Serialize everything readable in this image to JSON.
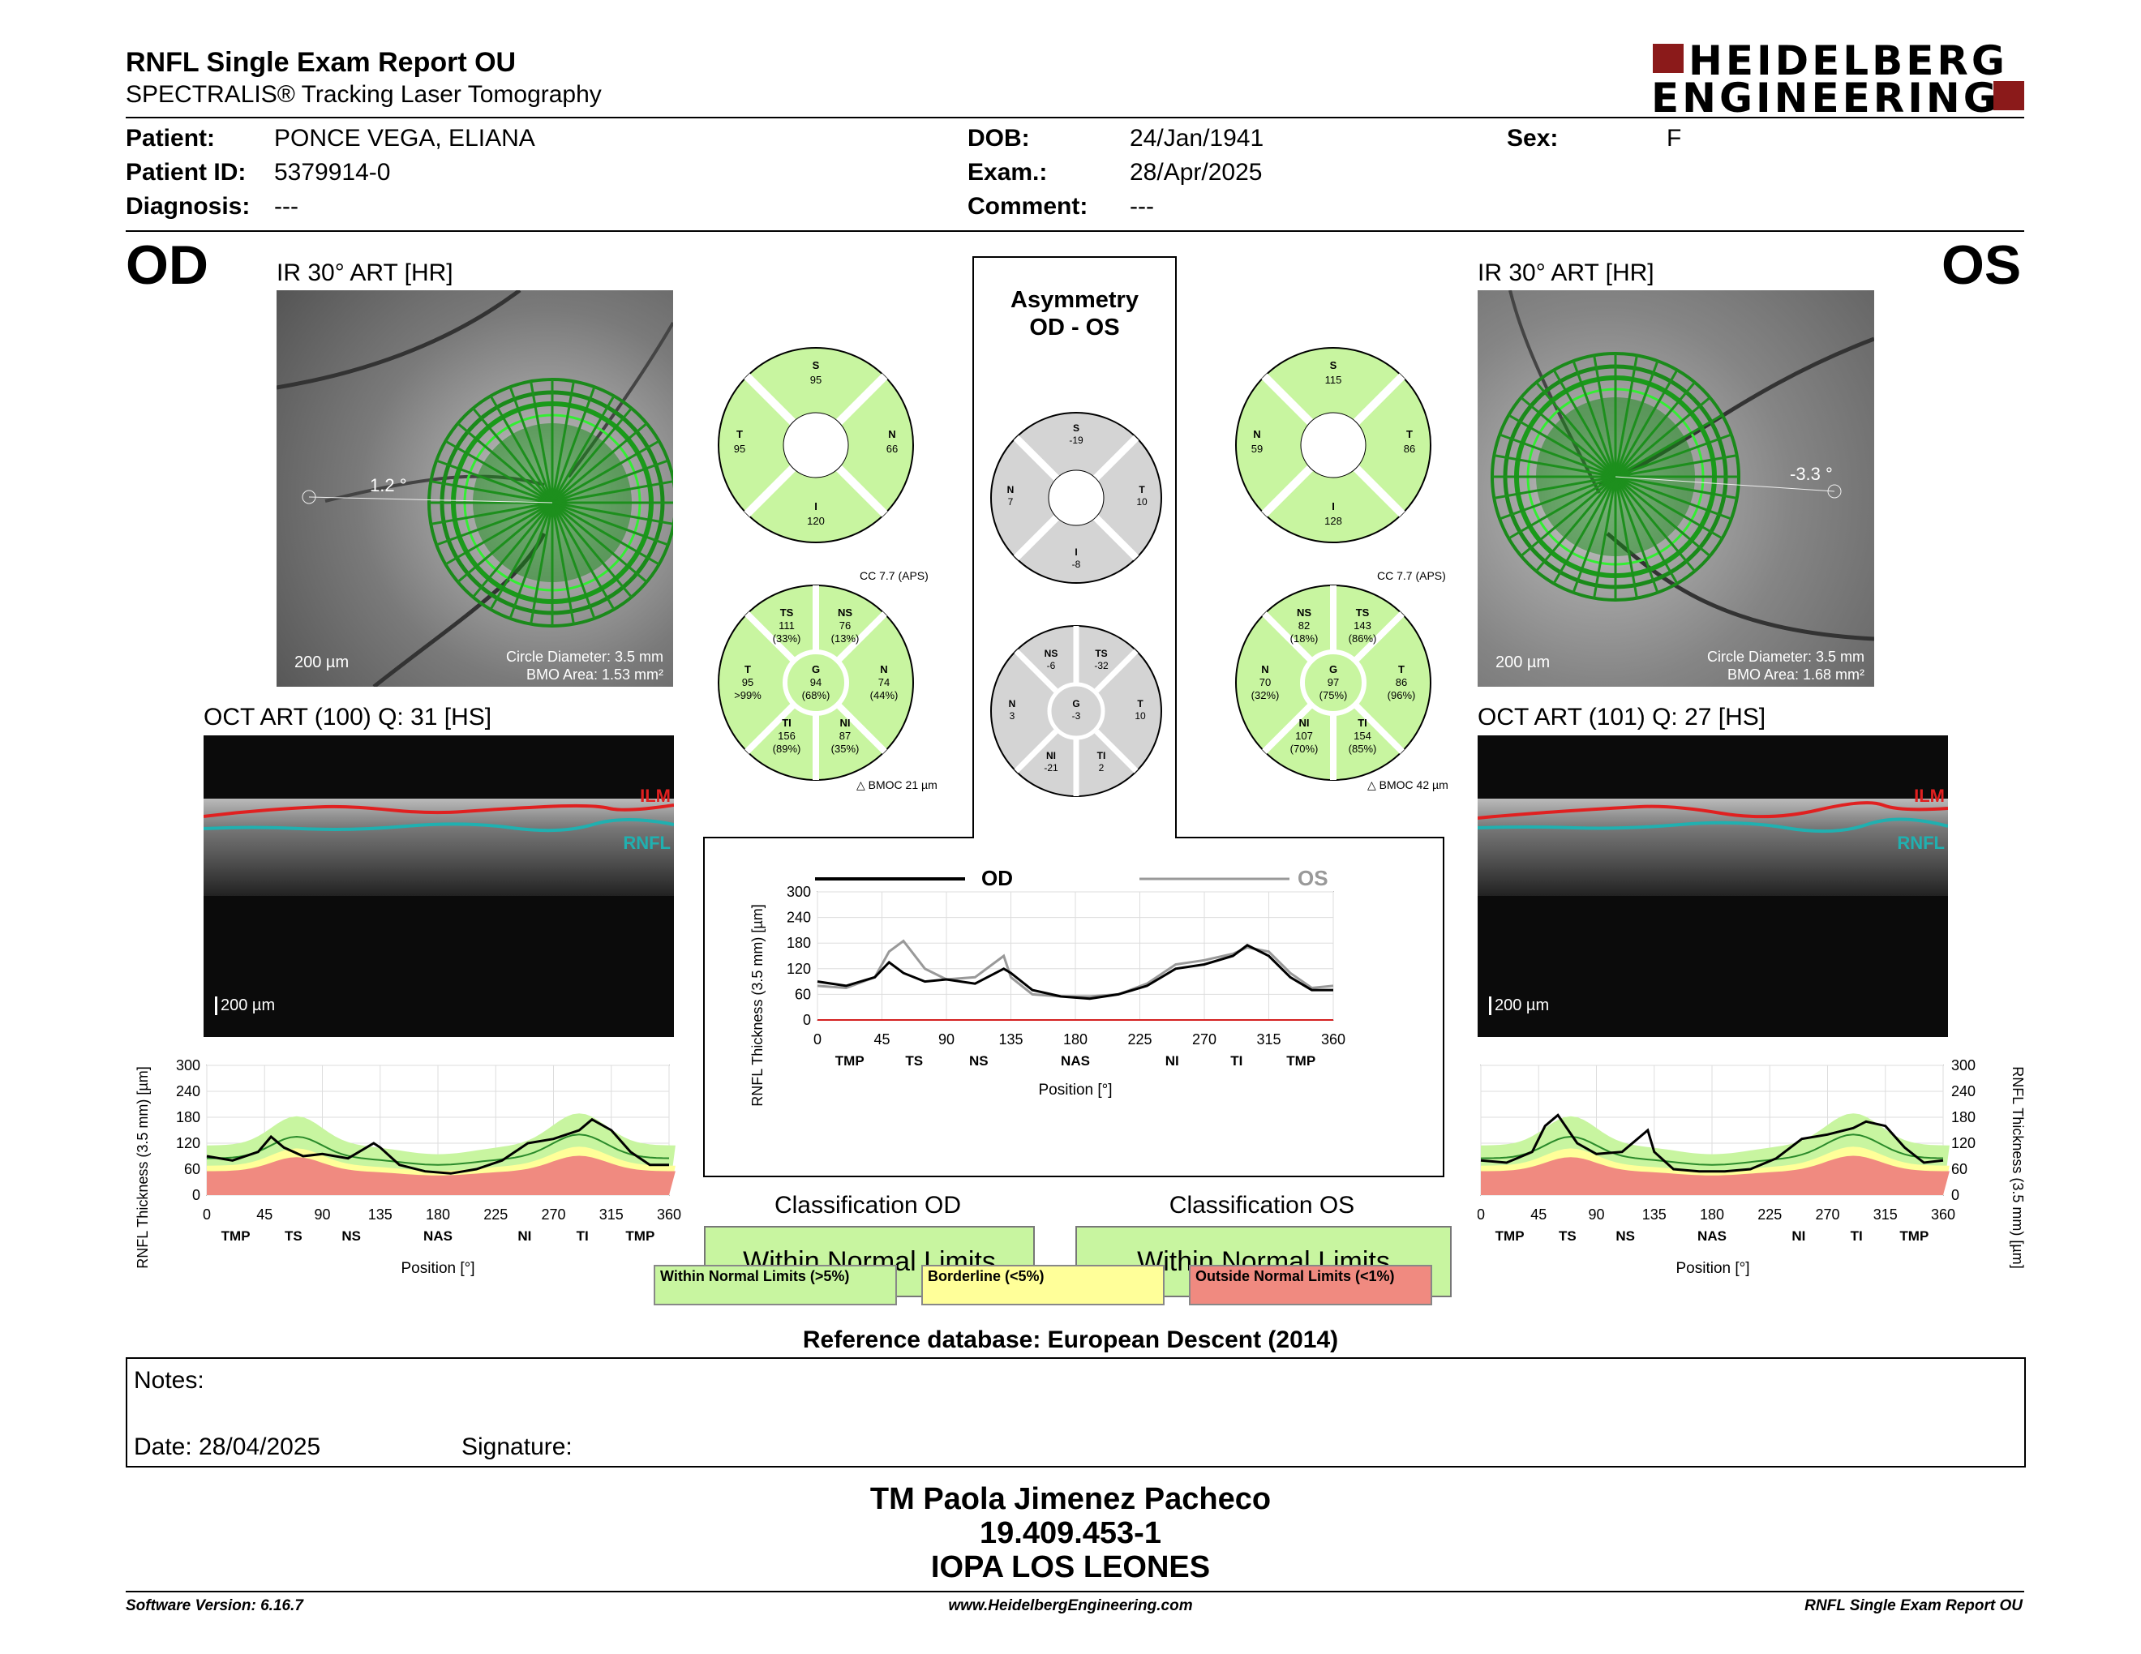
{
  "header": {
    "title": "RNFL Single Exam Report OU",
    "subtitle": "SPECTRALIS® Tracking Laser Tomography",
    "logo_line1": "HEIDELBERG",
    "logo_line2": "ENGINEERING"
  },
  "patient": {
    "patient_label": "Patient:",
    "patient_value": "PONCE VEGA, ELIANA",
    "id_label": "Patient ID:",
    "id_value": "5379914-0",
    "diagnosis_label": "Diagnosis:",
    "diagnosis_value": "---",
    "dob_label": "DOB:",
    "dob_value": "24/Jan/1941",
    "exam_label": "Exam.:",
    "exam_value": "28/Apr/2025",
    "comment_label": "Comment:",
    "comment_value": "---",
    "sex_label": "Sex:",
    "sex_value": "F"
  },
  "od": {
    "eye": "OD",
    "ir_title": "IR 30° ART [HR]",
    "angle": "1.2 °",
    "scale": "200 µm",
    "circle_diameter": "Circle Diameter: 3.5 mm",
    "bmo_area": "BMO Area: 1.53 mm²",
    "oct_title": "OCT ART (100) Q: 31 [HS]",
    "ilm": "ILM",
    "rnfl": "RNFL",
    "oct_scale": "200 µm",
    "sectors4": {
      "S": "95",
      "T": "95",
      "N": "66",
      "I": "120"
    },
    "cc": "CC 7.7 (APS)",
    "bmoc": "BMOC 21 µm",
    "sectors6": {
      "TS": [
        "111",
        "(33%)"
      ],
      "NS": [
        "76",
        "(13%)"
      ],
      "T": [
        "95",
        ">99%"
      ],
      "G": [
        "94",
        "(68%)"
      ],
      "N": [
        "74",
        "(44%)"
      ],
      "TI": [
        "156",
        "(89%)"
      ],
      "NI": [
        "87",
        "(35%)"
      ]
    },
    "classification_label": "Classification OD",
    "classification_value": "Within Normal Limits"
  },
  "os": {
    "eye": "OS",
    "ir_title": "IR 30° ART [HR]",
    "angle": "-3.3 °",
    "scale": "200 µm",
    "circle_diameter": "Circle Diameter: 3.5 mm",
    "bmo_area": "BMO Area: 1.68 mm²",
    "oct_title": "OCT ART (101) Q: 27 [HS]",
    "ilm": "ILM",
    "rnfl": "RNFL",
    "oct_scale": "200 µm",
    "sectors4": {
      "S": "115",
      "N": "59",
      "T": "86",
      "I": "128"
    },
    "cc": "CC 7.7 (APS)",
    "bmoc": "BMOC 42 µm",
    "sectors6": {
      "NS": [
        "82",
        "(18%)"
      ],
      "TS": [
        "143",
        "(86%)"
      ],
      "N": [
        "70",
        "(32%)"
      ],
      "G": [
        "97",
        "(75%)"
      ],
      "T": [
        "86",
        "(96%)"
      ],
      "NI": [
        "107",
        "(70%)"
      ],
      "TI": [
        "154",
        "(85%)"
      ]
    },
    "classification_label": "Classification OS",
    "classification_value": "Within Normal Limits"
  },
  "asymmetry": {
    "title1": "Asymmetry",
    "title2": "OD - OS",
    "sectors4": {
      "S": "-19",
      "N": "7",
      "T": "10",
      "I": "-8"
    },
    "sectors6": {
      "NS": "-6",
      "TS": "-32",
      "N": "3",
      "G": "-3",
      "T": "10",
      "NI": "-21",
      "TI": "2"
    }
  },
  "charts": {
    "ylabel": "RNFL Thickness (3.5 mm) [µm]",
    "xlabel": "Position [°]",
    "od_legend": "OD",
    "os_legend": "OS",
    "yticks": [
      "0",
      "60",
      "120",
      "180",
      "240",
      "300"
    ],
    "xticks": [
      "0",
      "45",
      "90",
      "135",
      "180",
      "225",
      "270",
      "315",
      "360"
    ],
    "sectors": [
      "TMP",
      "TS",
      "NS",
      "NAS",
      "NI",
      "TI",
      "TMP"
    ]
  },
  "chart_data": [
    {
      "type": "line",
      "title": "",
      "xlabel": "Position [°]",
      "ylabel": "RNFL Thickness (3.5 mm) [µm]",
      "xlim": [
        0,
        360
      ],
      "ylim": [
        0,
        300
      ],
      "x": [
        0,
        20,
        40,
        50,
        60,
        75,
        90,
        110,
        130,
        135,
        150,
        170,
        190,
        210,
        230,
        250,
        270,
        290,
        300,
        315,
        330,
        345,
        360
      ],
      "series": [
        {
          "name": "OD",
          "values": [
            90,
            80,
            100,
            135,
            110,
            90,
            95,
            85,
            120,
            110,
            70,
            55,
            50,
            60,
            80,
            120,
            130,
            150,
            175,
            150,
            100,
            70,
            70
          ]
        }
      ]
    },
    {
      "type": "line",
      "title": "",
      "xlabel": "Position [°]",
      "ylabel": "RNFL Thickness (3.5 mm) [µm]",
      "xlim": [
        0,
        360
      ],
      "ylim": [
        0,
        300
      ],
      "x": [
        0,
        20,
        40,
        50,
        60,
        75,
        90,
        110,
        130,
        135,
        150,
        170,
        190,
        210,
        230,
        250,
        270,
        290,
        300,
        315,
        330,
        345,
        360
      ],
      "series": [
        {
          "name": "OD",
          "values": [
            90,
            80,
            100,
            135,
            110,
            90,
            95,
            85,
            120,
            110,
            70,
            55,
            50,
            60,
            80,
            120,
            130,
            150,
            175,
            150,
            100,
            70,
            70
          ]
        },
        {
          "name": "OS",
          "values": [
            80,
            75,
            100,
            160,
            185,
            120,
            95,
            100,
            150,
            100,
            60,
            55,
            55,
            60,
            85,
            130,
            140,
            155,
            170,
            160,
            110,
            75,
            80
          ]
        }
      ]
    },
    {
      "type": "line",
      "title": "",
      "xlabel": "Position [°]",
      "ylabel": "RNFL Thickness (3.5 mm) [µm]",
      "xlim": [
        0,
        360
      ],
      "ylim": [
        0,
        300
      ],
      "x": [
        0,
        20,
        40,
        50,
        60,
        75,
        90,
        110,
        130,
        135,
        150,
        170,
        190,
        210,
        230,
        250,
        270,
        290,
        300,
        315,
        330,
        345,
        360
      ],
      "series": [
        {
          "name": "OS",
          "values": [
            80,
            75,
            100,
            160,
            185,
            120,
            95,
            100,
            150,
            100,
            60,
            55,
            55,
            60,
            85,
            130,
            140,
            155,
            170,
            160,
            110,
            75,
            80
          ]
        }
      ]
    }
  ],
  "classification": {
    "legend_normal": "Within Normal Limits (>5%)",
    "legend_borderline": "Borderline (<5%)",
    "legend_outside": "Outside Normal Limits (<1%)",
    "color_normal": "#c8f5a0",
    "color_borderline": "#ffff99",
    "color_outside": "#f08a80",
    "reference": "Reference database: European Descent (2014)"
  },
  "notes": {
    "notes_label": "Notes:",
    "date_label": "Date: 28/04/2025",
    "signature_label": "Signature:"
  },
  "stamp": {
    "line1": "TM Paola Jimenez Pacheco",
    "line2": "19.409.453-1",
    "line3": "IOPA LOS LEONES"
  },
  "footer": {
    "version": "Software Version: 6.16.7",
    "website": "www.HeidelbergEngineering.com",
    "report": "RNFL Single Exam Report OU"
  }
}
